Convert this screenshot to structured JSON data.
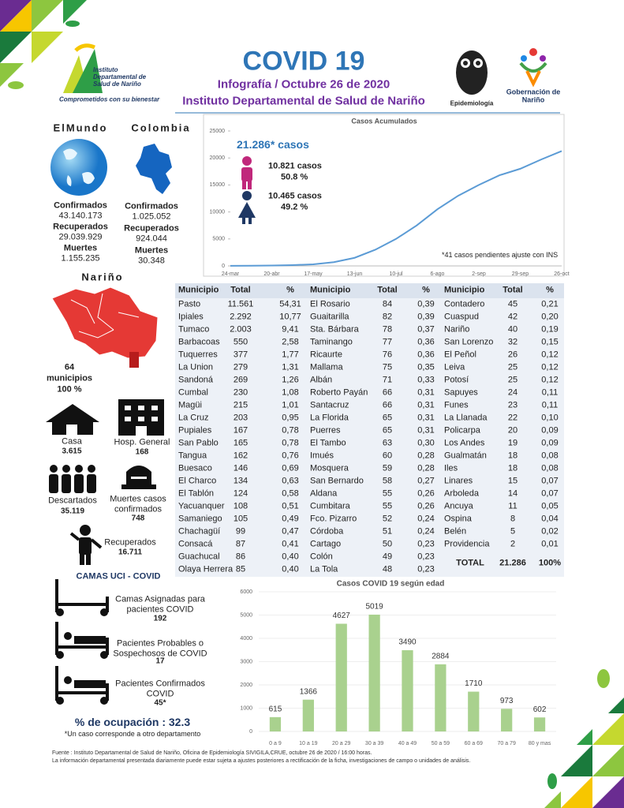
{
  "header": {
    "title": "COVID 19",
    "subtitle": "Infografía / Octubre 26 de 2020",
    "institution": "Instituto Departamental de Salud de Nariño",
    "logo_name": "Instituto Departamental de Salud de Nariño",
    "logo_slogan": "Comprometidos con su bienestar",
    "epidemiologia": "Epidemiología",
    "gobernacion": "Gobernación de Nariño"
  },
  "world": {
    "title": "ElMundo",
    "stats": [
      {
        "label": "Confirmados",
        "value": "43.140.173"
      },
      {
        "label": "Recuperados",
        "value": "29.039.929"
      },
      {
        "label": "Muertes",
        "value": "1.155.235"
      }
    ]
  },
  "colombia": {
    "title": "Colombia",
    "stats": [
      {
        "label": "Confirmados",
        "value": "1.025.052"
      },
      {
        "label": "Recuperados",
        "value": "924.044"
      },
      {
        "label": "Muertes",
        "value": "30.348"
      }
    ]
  },
  "narino": {
    "title": "Nariño",
    "count": "64",
    "unit": "municipios",
    "percent": "100 %"
  },
  "cases": [
    {
      "label": "Casa",
      "value": "3.615"
    },
    {
      "label": "Hosp. General",
      "value": "168"
    },
    {
      "label": "Descartados",
      "value": "35.119"
    },
    {
      "label": "Muertes casos confirmados",
      "value": "748"
    },
    {
      "label": "Recuperados",
      "value": "16.711"
    }
  ],
  "uci": {
    "title": "CAMAS UCI - COVID",
    "items": [
      {
        "label": "Camas Asignadas para pacientes COVID",
        "value": "192"
      },
      {
        "label": "Pacientes Probables o Sospechosos de COVID",
        "value": "17"
      },
      {
        "label": "Pacientes Confirmados COVID",
        "value": "45*"
      }
    ],
    "occupancy": "% de ocupación : 32.3",
    "note": "*Un caso corresponde a otro departamento"
  },
  "table": {
    "columns": [
      "Municipio",
      "Total",
      "%"
    ],
    "groups": [
      [
        [
          "Pasto",
          "11.561",
          "54,31"
        ],
        [
          "Ipiales",
          "2.292",
          "10,77"
        ],
        [
          "Tumaco",
          "2.003",
          "9,41"
        ],
        [
          "Barbacoas",
          "550",
          "2,58"
        ],
        [
          "Tuquerres",
          "377",
          "1,77"
        ],
        [
          "La Union",
          "279",
          "1,31"
        ],
        [
          "Sandoná",
          "269",
          "1,26"
        ],
        [
          "Cumbal",
          "230",
          "1,08"
        ],
        [
          "Magüi",
          "215",
          "1,01"
        ],
        [
          "La Cruz",
          "203",
          "0,95"
        ],
        [
          "Pupiales",
          "167",
          "0,78"
        ],
        [
          "San Pablo",
          "165",
          "0,78"
        ],
        [
          "Tangua",
          "162",
          "0,76"
        ],
        [
          "Buesaco",
          "146",
          "0,69"
        ],
        [
          "El Charco",
          "134",
          "0,63"
        ],
        [
          "El Tablón",
          "124",
          "0,58"
        ],
        [
          "Yacuanquer",
          "108",
          "0,51"
        ],
        [
          "Samaniego",
          "105",
          "0,49"
        ],
        [
          "Chachagüí",
          "99",
          "0,47"
        ],
        [
          "Consacá",
          "87",
          "0,41"
        ],
        [
          "Guachucal",
          "86",
          "0,40"
        ],
        [
          "Olaya Herrera",
          "85",
          "0,40"
        ]
      ],
      [
        [
          "El Rosario",
          "84",
          "0,39"
        ],
        [
          "Guaitarilla",
          "82",
          "0,39"
        ],
        [
          "Sta. Bárbara",
          "78",
          "0,37"
        ],
        [
          "Taminango",
          "77",
          "0,36"
        ],
        [
          "Ricaurte",
          "76",
          "0,36"
        ],
        [
          "Mallama",
          "75",
          "0,35"
        ],
        [
          "Albán",
          "71",
          "0,33"
        ],
        [
          "Roberto Payán",
          "66",
          "0,31"
        ],
        [
          "Santacruz",
          "66",
          "0,31"
        ],
        [
          "La Florida",
          "65",
          "0,31"
        ],
        [
          "Puerres",
          "65",
          "0,31"
        ],
        [
          "El Tambo",
          "63",
          "0,30"
        ],
        [
          "Imués",
          "60",
          "0,28"
        ],
        [
          "Mosquera",
          "59",
          "0,28"
        ],
        [
          "San Bernardo",
          "58",
          "0,27"
        ],
        [
          "Aldana",
          "55",
          "0,26"
        ],
        [
          "Cumbitara",
          "55",
          "0,26"
        ],
        [
          "Fco. Pizarro",
          "52",
          "0,24"
        ],
        [
          "Córdoba",
          "51",
          "0,24"
        ],
        [
          "Cartago",
          "50",
          "0,23"
        ],
        [
          "Colón",
          "49",
          "0,23"
        ],
        [
          "La Tola",
          "48",
          "0,23"
        ]
      ],
      [
        [
          "Contadero",
          "45",
          "0,21"
        ],
        [
          "Cuaspud",
          "42",
          "0,20"
        ],
        [
          "Nariño",
          "40",
          "0,19"
        ],
        [
          "San Lorenzo",
          "32",
          "0,15"
        ],
        [
          "El Peñol",
          "26",
          "0,12"
        ],
        [
          "Leiva",
          "25",
          "0,12"
        ],
        [
          "Potosí",
          "25",
          "0,12"
        ],
        [
          "Sapuyes",
          "24",
          "0,11"
        ],
        [
          "Funes",
          "23",
          "0,11"
        ],
        [
          "La Llanada",
          "22",
          "0,10"
        ],
        [
          "Policarpa",
          "20",
          "0,09"
        ],
        [
          "Los Andes",
          "19",
          "0,09"
        ],
        [
          "Gualmatán",
          "18",
          "0,08"
        ],
        [
          "Iles",
          "18",
          "0,08"
        ],
        [
          "Linares",
          "15",
          "0,07"
        ],
        [
          "Arboleda",
          "14",
          "0,07"
        ],
        [
          "Ancuya",
          "11",
          "0,05"
        ],
        [
          "Ospina",
          "8",
          "0,04"
        ],
        [
          "Belén",
          "5",
          "0,02"
        ],
        [
          "Providencia",
          "2",
          "0,01"
        ]
      ]
    ],
    "total": [
      "TOTAL",
      "21.286",
      "100%"
    ]
  },
  "chart_data": [
    {
      "type": "line",
      "title": "Casos Acumulados",
      "categories": [
        "24-mar",
        null,
        "20-abr",
        null,
        "17-may",
        null,
        "13-jun",
        null,
        "10-jul",
        null,
        "6-ago",
        null,
        "2-sep",
        null,
        "29-sep",
        null,
        "26-oct"
      ],
      "values": [
        10,
        30,
        80,
        150,
        300,
        700,
        1500,
        3000,
        5000,
        7500,
        10500,
        13000,
        15000,
        16800,
        18000,
        19700,
        21286
      ],
      "color": "#5b9bd5",
      "ylim": [
        0,
        25000
      ],
      "yticks": [
        0,
        5000,
        10000,
        15000,
        20000,
        25000
      ],
      "grid": false,
      "annotations": {
        "total": "21.286* casos",
        "male_cases": "10.821 casos",
        "male_pct": "50.8 %",
        "female_cases": "10.465 casos",
        "female_pct": "49.2 %",
        "note": "*41 casos  pendientes ajuste con INS"
      }
    },
    {
      "type": "bar",
      "title": "Casos COVID 19  según edad",
      "categories": [
        "0 a 9",
        "10 a 19",
        "20 a 29",
        "30 a 39",
        "40 a 49",
        "50 a 59",
        "60 a 69",
        "70 a 79",
        "80 y mas"
      ],
      "values": [
        615,
        1366,
        4627,
        5019,
        3490,
        2884,
        1710,
        973,
        602
      ],
      "color": "#a9d18e",
      "ylim": [
        0,
        6000
      ],
      "yticks": [
        0,
        1000,
        2000,
        3000,
        4000,
        5000,
        6000
      ],
      "grid": true
    }
  ],
  "footer": [
    "Fuente : Instituto Departamental de Salud de Nariño, Oficina de Epidemiología SIVIGILA,CRUE,  octubre  26  de  2020 / 16:00  horas.",
    "La información departamental presentada diariamente puede estar sujeta a ajustes posteriores a  rectificación de la ficha, investigaciones de campo o unidades de análisis."
  ]
}
